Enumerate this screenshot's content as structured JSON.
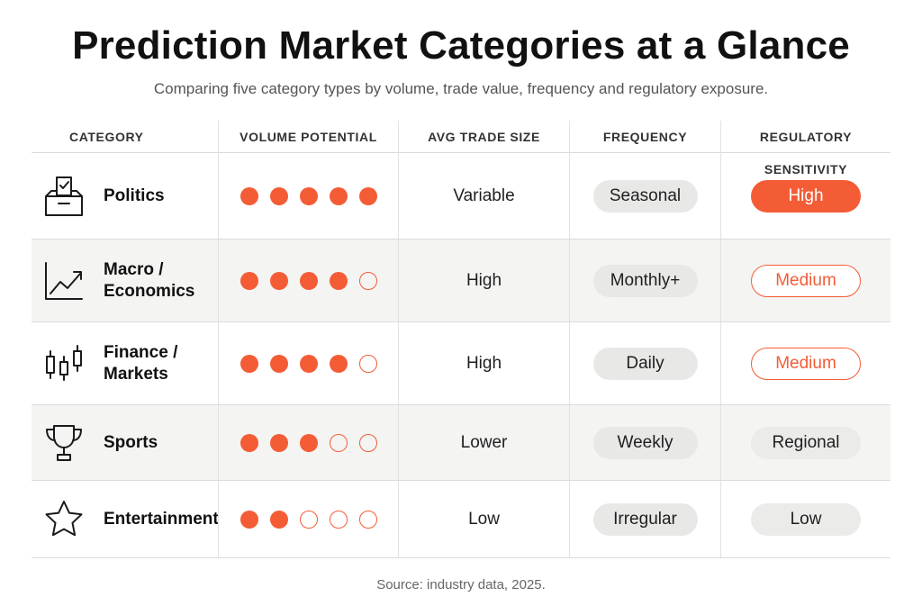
{
  "header": {
    "title": "Prediction Market Categories at a Glance",
    "subtitle": "Comparing five category types by volume, trade value, frequency and regulatory exposure."
  },
  "table": {
    "columns": [
      "CATEGORY",
      "VOLUME POTENTIAL",
      "AVG TRADE SIZE",
      "FREQUENCY",
      "REGULATORY SENSITIVITY"
    ],
    "rows": [
      {
        "icon": "ballot-box-icon",
        "category": "Politics",
        "volume_potential": 5,
        "volume_max": 5,
        "avg_trade_size": "Variable",
        "frequency": "Seasonal",
        "regulatory_sensitivity": "High"
      },
      {
        "icon": "trend-chart-icon",
        "category": "Macro /\nEconomics",
        "volume_potential": 4,
        "volume_max": 5,
        "avg_trade_size": "High",
        "frequency": "Monthly+",
        "regulatory_sensitivity": "Medium"
      },
      {
        "icon": "candlestick-icon",
        "category": "Finance /\nMarkets",
        "volume_potential": 4,
        "volume_max": 5,
        "avg_trade_size": "High",
        "frequency": "Daily",
        "regulatory_sensitivity": "Medium"
      },
      {
        "icon": "trophy-icon",
        "category": "Sports",
        "volume_potential": 3,
        "volume_max": 5,
        "avg_trade_size": "Lower",
        "frequency": "Weekly",
        "regulatory_sensitivity": "Regional"
      },
      {
        "icon": "star-icon",
        "category": "Entertainment",
        "volume_potential": 2,
        "volume_max": 5,
        "avg_trade_size": "Low",
        "frequency": "Irregular",
        "regulatory_sensitivity": "Low"
      }
    ]
  },
  "colors": {
    "accent": "#f45c36",
    "pill_gray": "#e8e8e7",
    "row_shade": "#f4f4f3"
  },
  "footer": {
    "source": "Source: industry data, 2025."
  }
}
